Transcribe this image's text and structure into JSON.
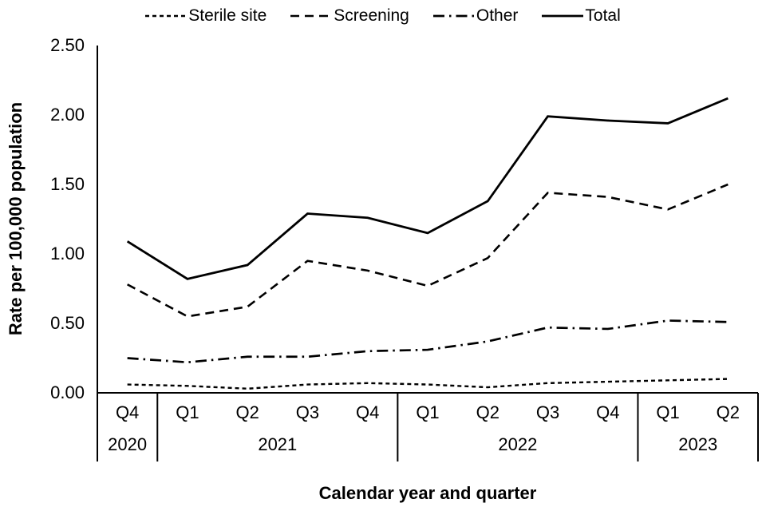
{
  "chart_data": {
    "type": "line",
    "title": "",
    "xlabel": "Calendar year and quarter",
    "ylabel": "Rate per 100,000 population",
    "ylim": [
      0,
      2.5
    ],
    "yticks": [
      "0.00",
      "0.50",
      "1.00",
      "1.50",
      "2.00",
      "2.50"
    ],
    "ytick_values": [
      0,
      0.5,
      1.0,
      1.5,
      2.0,
      2.5
    ],
    "categories": [
      "Q4",
      "Q1",
      "Q2",
      "Q3",
      "Q4",
      "Q1",
      "Q2",
      "Q3",
      "Q4",
      "Q1",
      "Q2"
    ],
    "year_groups": [
      {
        "label": "2020",
        "quarters": 1
      },
      {
        "label": "2021",
        "quarters": 4
      },
      {
        "label": "2022",
        "quarters": 4
      },
      {
        "label": "2023",
        "quarters": 2
      }
    ],
    "grid": false,
    "legend_position": "top",
    "colors": {
      "line": "#000000",
      "background": "#ffffff",
      "text": "#000000"
    },
    "series": [
      {
        "name": "Sterile site",
        "style": "fine-dash",
        "values": [
          0.06,
          0.05,
          0.03,
          0.06,
          0.07,
          0.06,
          0.04,
          0.07,
          0.08,
          0.09,
          0.1
        ]
      },
      {
        "name": "Screening",
        "style": "dash",
        "values": [
          0.78,
          0.55,
          0.62,
          0.95,
          0.88,
          0.77,
          0.97,
          1.44,
          1.41,
          1.32,
          1.5
        ]
      },
      {
        "name": "Other",
        "style": "dash-dot",
        "values": [
          0.25,
          0.22,
          0.26,
          0.26,
          0.3,
          0.31,
          0.37,
          0.47,
          0.46,
          0.52,
          0.51
        ]
      },
      {
        "name": "Total",
        "style": "solid",
        "values": [
          1.09,
          0.82,
          0.92,
          1.29,
          1.26,
          1.15,
          1.38,
          1.99,
          1.96,
          1.94,
          2.12
        ]
      }
    ]
  }
}
